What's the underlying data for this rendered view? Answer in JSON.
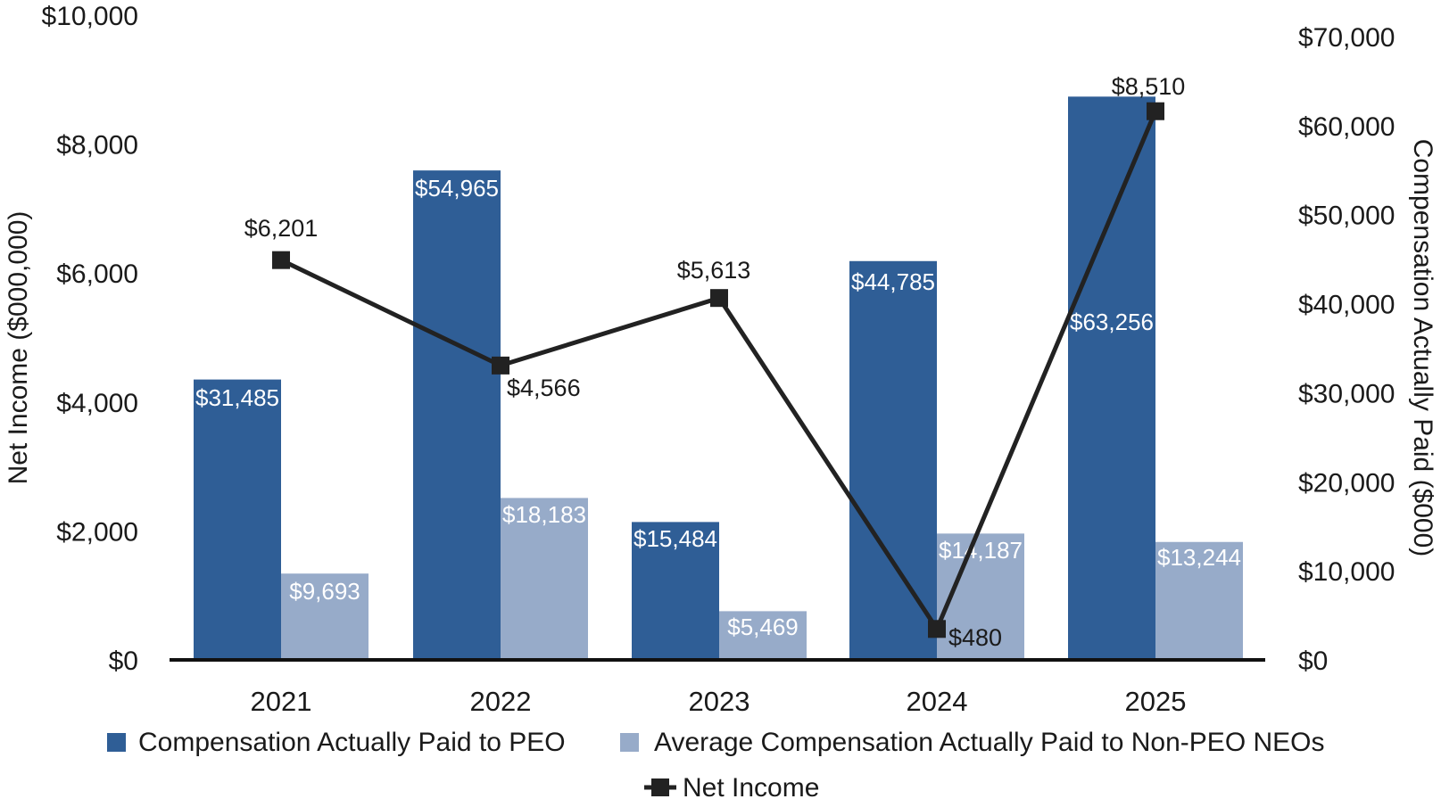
{
  "chart_data": {
    "type": "bar",
    "categories": [
      "2021",
      "2022",
      "2023",
      "2024",
      "2025"
    ],
    "series": [
      {
        "name": "Compensation Actually Paid to PEO",
        "axis": "right",
        "values": [
          31485,
          54965,
          15484,
          44785,
          63256
        ],
        "labels": [
          "$31,485",
          "$54,965",
          "$15,484",
          "$44,785",
          "$63,256"
        ],
        "color": "#2f5e96"
      },
      {
        "name": "Average Compensation Actually Paid to Non-PEO NEOs",
        "axis": "right",
        "values": [
          9693,
          18183,
          5469,
          14187,
          13244
        ],
        "labels": [
          "$9,693",
          "$18,183",
          "$5,469",
          "$14,187",
          "$13,244"
        ],
        "color": "#97abc9"
      },
      {
        "name": "Net Income",
        "type": "line",
        "axis": "left",
        "values": [
          6201,
          4566,
          5613,
          480,
          8510
        ],
        "labels": [
          "$6,201",
          "$4,566",
          "$5,613",
          "$480",
          "$8,510"
        ],
        "color": "#222222"
      }
    ],
    "left_axis": {
      "label": "Net Income ($000,000)",
      "ylim": [
        0,
        10000
      ],
      "ticks": [
        0,
        2000,
        4000,
        6000,
        8000,
        10000
      ],
      "tick_labels": [
        "$0",
        "$2,000",
        "$4,000",
        "$6,000",
        "$8,000",
        "$10,000"
      ]
    },
    "right_axis": {
      "label": "Compensation Actually Paid ($000)",
      "ylim": [
        0,
        70000
      ],
      "ticks": [
        0,
        10000,
        20000,
        30000,
        40000,
        50000,
        60000,
        70000
      ],
      "tick_labels": [
        "$0",
        "$10,000",
        "$20,000",
        "$30,000",
        "$40,000",
        "$50,000",
        "$60,000",
        "$70,000"
      ]
    },
    "legend": [
      "Compensation Actually Paid to PEO",
      "Average Compensation Actually Paid to Non-PEO NEOs",
      "Net Income"
    ],
    "legend_position": "bottom"
  }
}
